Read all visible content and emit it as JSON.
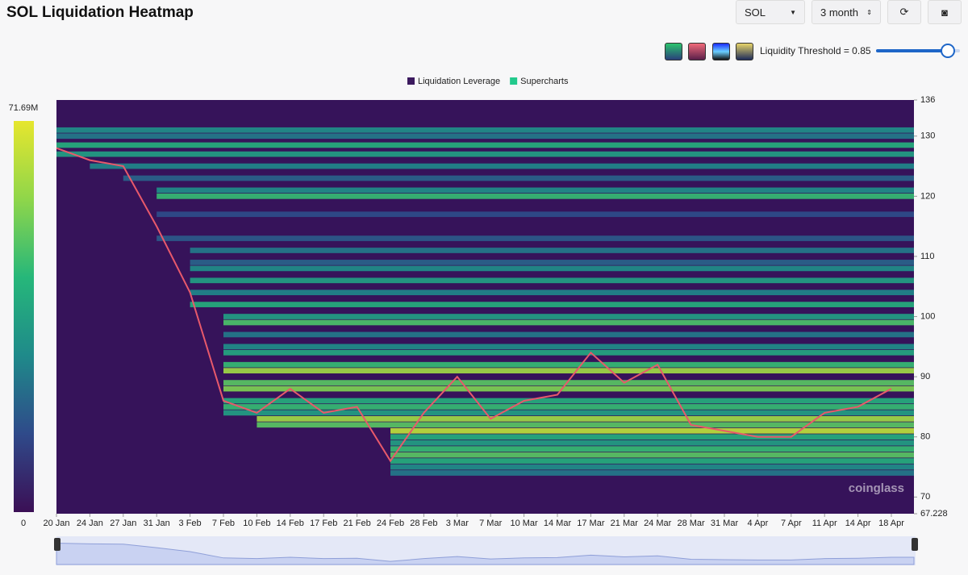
{
  "header": {
    "title": "SOL Liquidation Heatmap",
    "coin": "SOL",
    "range": "3 month",
    "threshold": "Liquidity Threshold = 0.85"
  },
  "chart_data": {
    "type": "heatmap",
    "series": [
      {
        "name": "Liquidation Leverage",
        "color": "#3b1a5e"
      },
      {
        "name": "Supercharts",
        "color": "#22c98c"
      }
    ],
    "categories": [
      "20 Jan",
      "24 Jan",
      "27 Jan",
      "31 Jan",
      "3 Feb",
      "7 Feb",
      "10 Feb",
      "14 Feb",
      "17 Feb",
      "21 Feb",
      "24 Feb",
      "28 Feb",
      "3 Mar",
      "7 Mar",
      "10 Mar",
      "14 Mar",
      "17 Mar",
      "21 Mar",
      "24 Mar",
      "28 Mar",
      "31 Mar",
      "4 Apr",
      "7 Apr",
      "11 Apr",
      "14 Apr",
      "18 Apr"
    ],
    "price": {
      "color": "#e8596b",
      "values": [
        128,
        126,
        125,
        115,
        104,
        86,
        84,
        88,
        84,
        85,
        76,
        84,
        90,
        83,
        86,
        87,
        94,
        89,
        92,
        82,
        81,
        80,
        80,
        84,
        85,
        88
      ]
    },
    "levels": [
      {
        "price": 131,
        "value": 30000000
      },
      {
        "price": 130,
        "value": 25000000
      },
      {
        "price": 128.5,
        "value": 40000000
      },
      {
        "price": 127,
        "value": 35000000
      },
      {
        "price": 125,
        "value": 28000000
      },
      {
        "price": 123,
        "value": 20000000
      },
      {
        "price": 121,
        "value": 30000000
      },
      {
        "price": 120,
        "value": 45000000
      },
      {
        "price": 117,
        "value": 15000000
      },
      {
        "price": 113,
        "value": 18000000
      },
      {
        "price": 111,
        "value": 25000000
      },
      {
        "price": 109,
        "value": 20000000
      },
      {
        "price": 108,
        "value": 30000000
      },
      {
        "price": 106,
        "value": 35000000
      },
      {
        "price": 104,
        "value": 28000000
      },
      {
        "price": 102,
        "value": 40000000
      },
      {
        "price": 100,
        "value": 35000000
      },
      {
        "price": 99,
        "value": 48000000
      },
      {
        "price": 97,
        "value": 25000000
      },
      {
        "price": 95,
        "value": 30000000
      },
      {
        "price": 94,
        "value": 38000000
      },
      {
        "price": 92,
        "value": 45000000
      },
      {
        "price": 91,
        "value": 60000000
      },
      {
        "price": 89,
        "value": 50000000
      },
      {
        "price": 88,
        "value": 55000000
      },
      {
        "price": 86,
        "value": 40000000
      },
      {
        "price": 85,
        "value": 45000000
      },
      {
        "price": 84,
        "value": 35000000
      },
      {
        "price": 83,
        "value": 60000000
      },
      {
        "price": 82,
        "value": 50000000
      },
      {
        "price": 81,
        "value": 65000000
      },
      {
        "price": 80,
        "value": 40000000
      },
      {
        "price": 79,
        "value": 35000000
      },
      {
        "price": 78,
        "value": 45000000
      },
      {
        "price": 77,
        "value": 50000000
      },
      {
        "price": 76,
        "value": 40000000
      },
      {
        "price": 75,
        "value": 30000000
      },
      {
        "price": 74,
        "value": 25000000
      }
    ],
    "ylim": [
      67.228,
      136
    ],
    "yticks": [
      67.228,
      70,
      80,
      90,
      100,
      110,
      120,
      130,
      136
    ],
    "clim": [
      0,
      71690000
    ],
    "cticks": [
      0,
      {
        "value": 71690000,
        "label": "71.69M"
      }
    ],
    "colormap": [
      "#3b0f55",
      "#2f4a8a",
      "#1f8a8a",
      "#26b77a",
      "#8fd64a",
      "#e6e62e"
    ],
    "background": "#36135a",
    "watermark": "coinglass"
  }
}
